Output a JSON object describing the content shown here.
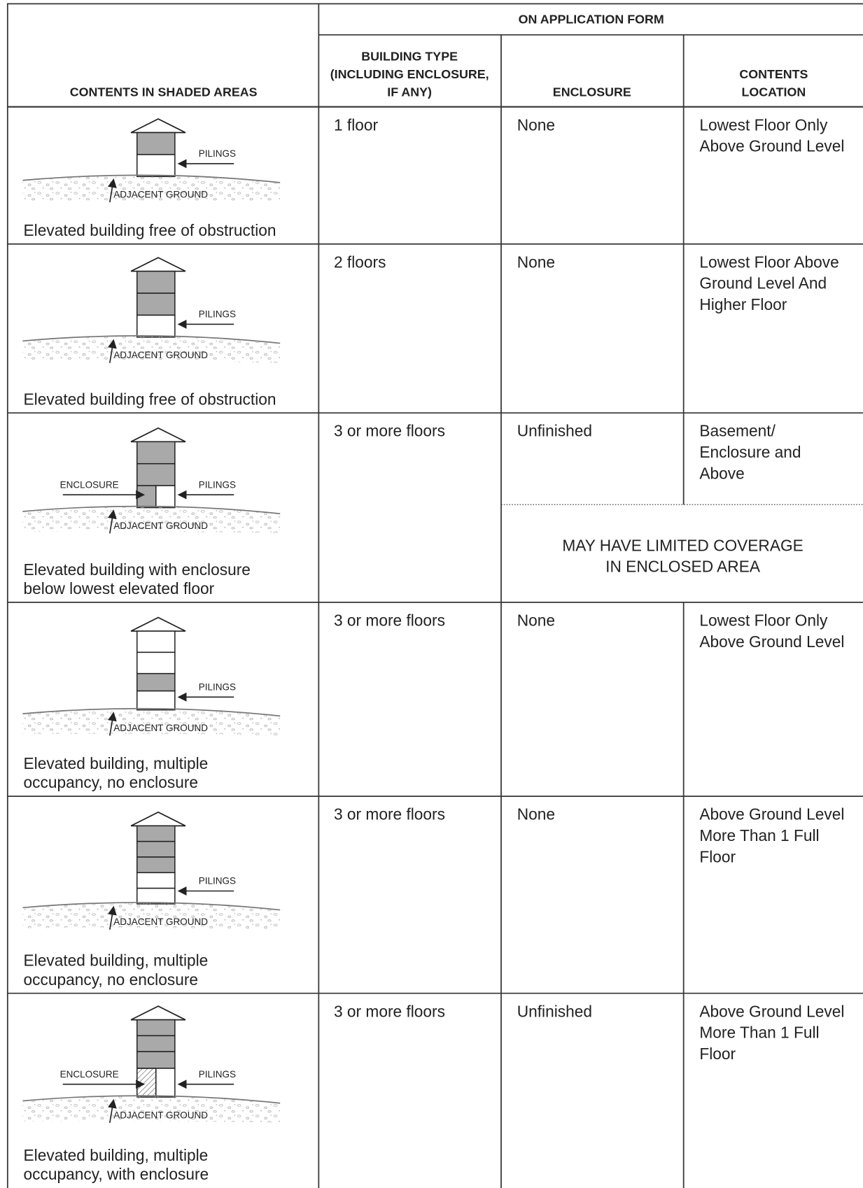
{
  "header": {
    "group": "ON APPLICATION FORM",
    "columns": [
      [
        "CONTENTS IN SHADED AREAS"
      ],
      [
        "BUILDING TYPE",
        "(INCLUDING ENCLOSURE,",
        "IF ANY)"
      ],
      [
        "ENCLOSURE"
      ],
      [
        "CONTENTS",
        "LOCATION"
      ]
    ]
  },
  "rows": [
    {
      "labels": {
        "pilings": "PILINGS",
        "ground": "ADJACENT GROUND"
      },
      "caption": [
        "Elevated building free of obstruction"
      ],
      "building_type": "1 floor",
      "enclosure": "None",
      "location": [
        "Lowest Floor Only",
        "Above Ground Level"
      ]
    },
    {
      "labels": {
        "pilings": "PILINGS",
        "ground": "ADJACENT GROUND"
      },
      "caption": [
        "Elevated building free of obstruction"
      ],
      "building_type": "2 floors",
      "enclosure": "None",
      "location": [
        "Lowest Floor Above",
        "Ground Level And",
        "Higher Floor"
      ]
    },
    {
      "labels": {
        "enclosure": "ENCLOSURE",
        "pilings": "PILINGS",
        "ground": "ADJACENT GROUND"
      },
      "caption": [
        "Elevated building with enclosure",
        "below lowest elevated floor"
      ],
      "building_type": "3 or more floors",
      "enclosure": "Unfinished",
      "location": [
        "Basement/",
        "Enclosure and",
        "Above"
      ],
      "note": [
        "MAY HAVE LIMITED COVERAGE",
        "IN ENCLOSED AREA"
      ]
    },
    {
      "labels": {
        "pilings": "PILINGS",
        "ground": "ADJACENT GROUND"
      },
      "caption": [
        "Elevated building, multiple",
        "occupancy, no enclosure"
      ],
      "building_type": "3 or more floors",
      "enclosure": "None",
      "location": [
        "Lowest Floor Only",
        "Above Ground Level"
      ]
    },
    {
      "labels": {
        "pilings": "PILINGS",
        "ground": "ADJACENT GROUND"
      },
      "caption": [
        "Elevated building, multiple",
        "occupancy, no enclosure"
      ],
      "building_type": "3 or more floors",
      "enclosure": "None",
      "location": [
        "Above Ground Level",
        "More Than 1 Full",
        "Floor"
      ]
    },
    {
      "labels": {
        "enclosure": "ENCLOSURE",
        "pilings": "PILINGS",
        "ground": "ADJACENT GROUND"
      },
      "caption": [
        "Elevated building, multiple",
        "occupancy, with enclosure"
      ],
      "building_type": "3 or more floors",
      "enclosure": "Unfinished",
      "location": [
        "Above Ground Level",
        "More Than 1 Full",
        "Floor"
      ]
    }
  ]
}
